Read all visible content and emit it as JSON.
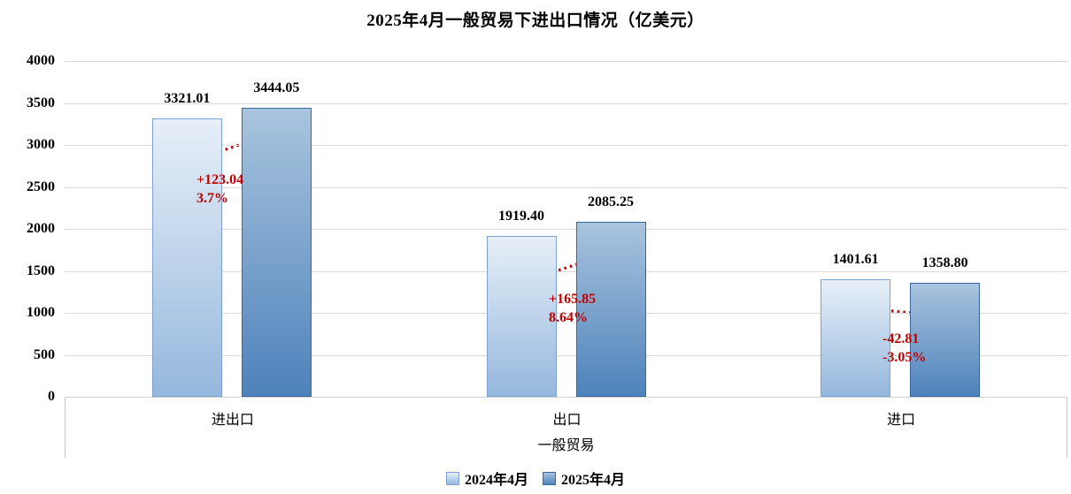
{
  "chart_data": {
    "type": "bar",
    "title": "2025年4月一般贸易下进出口情况（亿美元）",
    "categories": [
      "进出口",
      "出口",
      "进口"
    ],
    "series": [
      {
        "name": "2024年4月",
        "values": [
          3321.01,
          1919.4,
          1401.61
        ],
        "color_top": "#e7eff8",
        "color_bottom": "#95b8dd",
        "border": "#7da2d1"
      },
      {
        "name": "2025年4月",
        "values": [
          3444.05,
          2085.25,
          1358.8
        ],
        "color_top": "#a9c4de",
        "color_bottom": "#4e82bb",
        "border": "#38689e"
      }
    ],
    "annotations": [
      {
        "delta": "+123.04",
        "pct": "3.7%"
      },
      {
        "delta": "+165.85",
        "pct": "8.64%"
      },
      {
        "delta": "-42.81",
        "pct": "-3.05%"
      }
    ],
    "xlabel": "一般贸易",
    "ylabel": "",
    "ylim": [
      0,
      4000
    ],
    "yticks": [
      0,
      500,
      1000,
      1500,
      2000,
      2500,
      3000,
      3500,
      4000
    ],
    "grid": true,
    "legend_position": "bottom",
    "colors": {
      "annotation_red": "#c00000",
      "gridline": "#d9d9d9",
      "axis_line": "#c9c9c9",
      "text": "#000000"
    }
  }
}
